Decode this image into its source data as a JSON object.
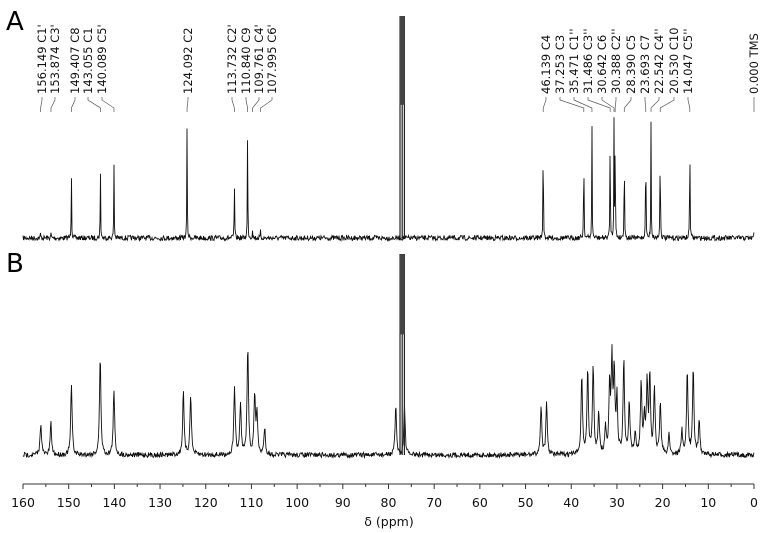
{
  "chart_data": {
    "type": "line",
    "title": "",
    "xlabel": "δ (ppm)",
    "ylabel": "",
    "xlim": [
      160,
      0
    ],
    "x_reversed": true,
    "x_ticks": [
      160,
      150,
      140,
      130,
      120,
      110,
      100,
      90,
      80,
      70,
      60,
      50,
      40,
      30,
      20,
      10,
      0
    ],
    "grid": false,
    "panels": [
      {
        "label": "A",
        "description": "13C NMR spectrum with peak assignments",
        "solvent_peak_ppm": 77.0,
        "peaks": [
          {
            "ppm": 156.149,
            "assign": "C1'",
            "height": 0.04
          },
          {
            "ppm": 153.874,
            "assign": "C3'",
            "height": 0.04
          },
          {
            "ppm": 149.407,
            "assign": "C8",
            "height": 0.62
          },
          {
            "ppm": 143.055,
            "assign": "C1",
            "height": 0.6
          },
          {
            "ppm": 140.089,
            "assign": "C5'",
            "height": 0.63
          },
          {
            "ppm": 124.092,
            "assign": "C2",
            "height": 0.97
          },
          {
            "ppm": 113.732,
            "assign": "C2'",
            "height": 0.52
          },
          {
            "ppm": 110.84,
            "assign": "C9",
            "height": 0.96
          },
          {
            "ppm": 109.761,
            "assign": "C4'",
            "height": 0.08
          },
          {
            "ppm": 107.995,
            "assign": "C6'",
            "height": 0.06
          },
          {
            "ppm": 46.139,
            "assign": "C4",
            "height": 0.99
          },
          {
            "ppm": 37.253,
            "assign": "C3",
            "height": 0.9
          },
          {
            "ppm": 35.471,
            "assign": "C1''",
            "height": 0.98
          },
          {
            "ppm": 31.486,
            "assign": "C3''",
            "height": 0.98
          },
          {
            "ppm": 30.642,
            "assign": "C6",
            "height": 0.98
          },
          {
            "ppm": 30.388,
            "assign": "C2''",
            "height": 0.96
          },
          {
            "ppm": 28.39,
            "assign": "C5",
            "height": 0.87
          },
          {
            "ppm": 23.693,
            "assign": "C7",
            "height": 0.97
          },
          {
            "ppm": 22.542,
            "assign": "C4''",
            "height": 0.98
          },
          {
            "ppm": 20.53,
            "assign": "C10",
            "height": 0.96
          },
          {
            "ppm": 14.047,
            "assign": "C5''",
            "height": 0.98
          },
          {
            "ppm": 0.0,
            "assign": "TMS",
            "height": 0.05
          }
        ]
      },
      {
        "label": "B",
        "description": "13C NMR spectrum of mixture (unassigned, broader lines)",
        "solvent_peak_ppm": 77.0,
        "peaks": [
          {
            "ppm": 156.1,
            "height": 0.3
          },
          {
            "ppm": 153.9,
            "height": 0.29
          },
          {
            "ppm": 149.4,
            "height": 0.64
          },
          {
            "ppm": 143.1,
            "height": 0.9
          },
          {
            "ppm": 140.1,
            "height": 0.59
          },
          {
            "ppm": 124.9,
            "height": 0.57
          },
          {
            "ppm": 123.3,
            "height": 0.56
          },
          {
            "ppm": 113.7,
            "height": 0.62
          },
          {
            "ppm": 112.4,
            "height": 0.47
          },
          {
            "ppm": 110.8,
            "height": 0.98
          },
          {
            "ppm": 109.3,
            "height": 0.53
          },
          {
            "ppm": 108.8,
            "height": 0.38
          },
          {
            "ppm": 107.1,
            "height": 0.25
          },
          {
            "ppm": 78.4,
            "height": 0.45
          },
          {
            "ppm": 76.5,
            "height": 0.45
          },
          {
            "ppm": 46.6,
            "height": 0.45
          },
          {
            "ppm": 45.4,
            "height": 0.46
          },
          {
            "ppm": 37.7,
            "height": 0.73
          },
          {
            "ppm": 36.4,
            "height": 0.77
          },
          {
            "ppm": 35.2,
            "height": 0.81
          },
          {
            "ppm": 34.0,
            "height": 0.39
          },
          {
            "ppm": 32.5,
            "height": 0.23
          },
          {
            "ppm": 31.6,
            "height": 0.62
          },
          {
            "ppm": 31.1,
            "height": 0.81
          },
          {
            "ppm": 30.6,
            "height": 0.72
          },
          {
            "ppm": 30.0,
            "height": 0.52
          },
          {
            "ppm": 28.5,
            "height": 0.86
          },
          {
            "ppm": 27.3,
            "height": 0.47
          },
          {
            "ppm": 26.0,
            "height": 0.2
          },
          {
            "ppm": 24.7,
            "height": 0.65
          },
          {
            "ppm": 24.0,
            "height": 0.35
          },
          {
            "ppm": 23.4,
            "height": 0.63
          },
          {
            "ppm": 22.8,
            "height": 0.71
          },
          {
            "ppm": 21.8,
            "height": 0.58
          },
          {
            "ppm": 20.5,
            "height": 0.48
          },
          {
            "ppm": 18.6,
            "height": 0.19
          },
          {
            "ppm": 15.8,
            "height": 0.22
          },
          {
            "ppm": 14.6,
            "height": 0.77
          },
          {
            "ppm": 13.3,
            "height": 0.77
          },
          {
            "ppm": 12.0,
            "height": 0.32
          }
        ]
      }
    ]
  },
  "figure": {
    "panel_a_label": "A",
    "panel_b_label": "B",
    "x_axis_title": "δ (ppm)"
  }
}
